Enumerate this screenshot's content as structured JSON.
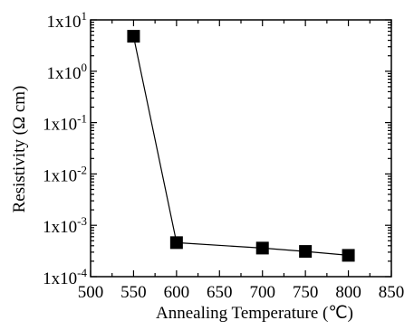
{
  "chart_data": {
    "type": "scatter",
    "title": "",
    "xlabel": "Annealing Temperature (℃)",
    "ylabel": "Resistivity (Ω cm)",
    "xlim": [
      500,
      850
    ],
    "ylim": [
      0.0001,
      10
    ],
    "yscale": "log",
    "xticks": [
      500,
      550,
      600,
      650,
      700,
      750,
      800,
      850
    ],
    "xtick_labels": [
      "500",
      "550",
      "600",
      "650",
      "700",
      "750",
      "800",
      "850"
    ],
    "yticks": [
      0.0001,
      0.001,
      0.01,
      0.1,
      1,
      10
    ],
    "ytick_labels": [
      {
        "base": "1x10",
        "exp": "-4"
      },
      {
        "base": "1x10",
        "exp": "-3"
      },
      {
        "base": "1x10",
        "exp": "-2"
      },
      {
        "base": "1x10",
        "exp": "-1"
      },
      {
        "base": "1x10",
        "exp": "0"
      },
      {
        "base": "1x10",
        "exp": "1"
      }
    ],
    "grid": false,
    "series": [
      {
        "x": [
          550,
          600,
          700,
          750,
          800
        ],
        "y": [
          4.8,
          0.00046,
          0.00036,
          0.00031,
          0.00026
        ],
        "marker": "square",
        "line": true,
        "color": "#000000"
      }
    ]
  }
}
